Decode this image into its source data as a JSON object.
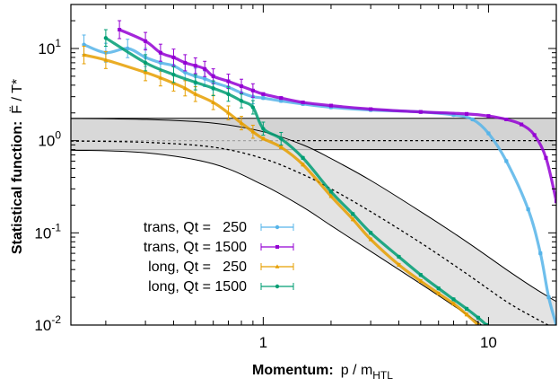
{
  "chart_data": {
    "type": "scatter",
    "xscale": "log",
    "yscale": "log",
    "xlim": [
      0.14,
      20
    ],
    "ylim": [
      0.01,
      30
    ],
    "grid": false,
    "legend_position": "bottom-left",
    "xticks": [
      {
        "value": 1,
        "label": "1"
      },
      {
        "value": 10,
        "label": "10"
      }
    ],
    "yticks": [
      {
        "value": 10,
        "base": "10",
        "exp": "1"
      },
      {
        "value": 1,
        "base": "10",
        "exp": "0"
      },
      {
        "value": 0.1,
        "base": "10",
        "exp": "-1"
      },
      {
        "value": 0.01,
        "base": "10",
        "exp": "-2"
      }
    ],
    "xlabel": {
      "bold": "Momentum:",
      "rest": "p / m",
      "sub": "HTL"
    },
    "ylabel": {
      "bold": "Statistical function:",
      "rest": "F̈ / T*"
    },
    "band": {
      "upper": 1.75,
      "lower": 0.8,
      "center": 1.0
    },
    "curves": {
      "mid_x": [
        0.14,
        0.3,
        0.6,
        1.0,
        1.5,
        2.0,
        3.0,
        5.0,
        8.0,
        12.0,
        16.0,
        20.0
      ],
      "mid_y": [
        0.99,
        0.96,
        0.85,
        0.64,
        0.43,
        0.3,
        0.17,
        0.078,
        0.036,
        0.018,
        0.012,
        0.009
      ],
      "upper_x": [
        0.14,
        0.3,
        0.6,
        1.0,
        1.5,
        2.0,
        3.0,
        5.0,
        8.0,
        12.0,
        16.0,
        20.0
      ],
      "upper_y": [
        1.74,
        1.7,
        1.55,
        1.25,
        0.9,
        0.64,
        0.37,
        0.17,
        0.08,
        0.04,
        0.025,
        0.018
      ],
      "lower_x": [
        0.14,
        0.3,
        0.6,
        1.0,
        1.5,
        2.0,
        3.0,
        5.0,
        8.0,
        12.0,
        16.0,
        20.0
      ],
      "lower_y": [
        0.79,
        0.74,
        0.56,
        0.33,
        0.19,
        0.12,
        0.063,
        0.028,
        0.013,
        0.0065,
        0.0045,
        0.0035
      ]
    },
    "series": [
      {
        "name": "trans, Qt =   250",
        "color": "#56b4e9",
        "marker": "circle",
        "x": [
          0.16,
          0.2,
          0.25,
          0.3,
          0.35,
          0.4,
          0.45,
          0.5,
          0.55,
          0.6,
          0.7,
          0.8,
          0.9,
          1.0,
          1.2,
          1.5,
          2.0,
          3.0,
          5.0,
          7.0,
          8.5,
          10.0,
          12.0,
          15.0,
          17.0,
          18.5,
          20.0
        ],
        "y": [
          11.0,
          9.0,
          10.0,
          8.0,
          7.0,
          6.5,
          5.5,
          5.0,
          4.7,
          4.3,
          3.8,
          3.3,
          3.0,
          2.9,
          2.7,
          2.5,
          2.3,
          2.15,
          2.05,
          1.9,
          1.7,
          1.2,
          0.6,
          0.18,
          0.06,
          0.02,
          0.01
        ]
      },
      {
        "name": "trans, Qt = 1500",
        "color": "#9400d3",
        "marker": "square",
        "x": [
          0.23,
          0.3,
          0.35,
          0.4,
          0.45,
          0.5,
          0.55,
          0.6,
          0.7,
          0.8,
          0.9,
          1.0,
          1.2,
          1.5,
          2.0,
          3.0,
          5.0,
          8.0,
          10.0,
          12.0,
          14.0,
          16.0,
          18.0,
          20.0
        ],
        "y": [
          16.0,
          12.0,
          9.0,
          8.0,
          7.0,
          6.5,
          6.0,
          5.0,
          4.4,
          3.9,
          3.5,
          3.2,
          2.9,
          2.6,
          2.4,
          2.2,
          2.05,
          1.95,
          1.85,
          1.7,
          1.5,
          1.15,
          0.65,
          0.22
        ]
      },
      {
        "name": "long, Qt =   250",
        "color": "#e69f00",
        "marker": "triangle",
        "x": [
          0.16,
          0.2,
          0.3,
          0.35,
          0.4,
          0.45,
          0.5,
          0.6,
          0.7,
          0.8,
          0.9,
          1.0,
          1.2,
          1.5,
          2.0,
          2.5,
          3.0,
          4.0,
          5.0,
          6.0,
          7.0,
          8.0,
          9.0
        ],
        "y": [
          8.5,
          7.5,
          5.5,
          4.8,
          4.2,
          3.7,
          3.2,
          2.6,
          2.0,
          1.55,
          1.25,
          1.05,
          0.85,
          0.55,
          0.25,
          0.14,
          0.085,
          0.045,
          0.03,
          0.022,
          0.017,
          0.013,
          0.01
        ]
      },
      {
        "name": "long, Qt = 1500",
        "color": "#009e73",
        "marker": "circle",
        "x": [
          0.2,
          0.3,
          0.4,
          0.5,
          0.6,
          0.7,
          0.8,
          0.9,
          1.0,
          1.2,
          1.5,
          2.0,
          2.5,
          3.0,
          4.0,
          5.0,
          6.0,
          7.0,
          8.0,
          9.0,
          9.8
        ],
        "y": [
          13.0,
          7.0,
          5.2,
          4.3,
          3.7,
          3.2,
          2.7,
          2.3,
          1.35,
          1.05,
          0.65,
          0.28,
          0.16,
          0.1,
          0.055,
          0.035,
          0.025,
          0.019,
          0.015,
          0.012,
          0.01
        ]
      }
    ]
  }
}
